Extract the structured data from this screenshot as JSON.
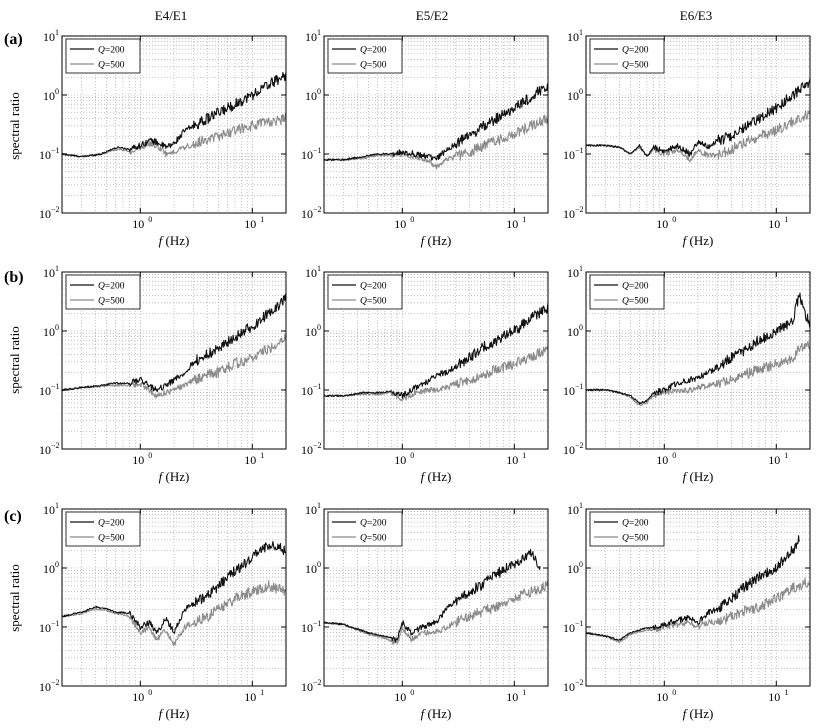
{
  "column_titles": [
    "E4/E1",
    "E5/E2",
    "E6/E3"
  ],
  "row_labels": [
    "(a)",
    "(b)",
    "(c)"
  ],
  "ylabel": "spectral ratio",
  "xlabel_italic": "f",
  "xlabel_unit": "(Hz)",
  "x_ticks": [
    {
      "value": 1,
      "base": "10",
      "exp": "0"
    },
    {
      "value": 10,
      "base": "10",
      "exp": "1"
    }
  ],
  "y_ticks": [
    {
      "value": 0.01,
      "base": "10",
      "exp": "−2"
    },
    {
      "value": 0.1,
      "base": "10",
      "exp": "−1"
    },
    {
      "value": 1,
      "base": "10",
      "exp": "0"
    },
    {
      "value": 10,
      "base": "10",
      "exp": "1"
    }
  ],
  "legend": [
    {
      "q": "Q",
      "rest": "=200",
      "color": "#111111"
    },
    {
      "q": "Q",
      "rest": "=500",
      "color": "#8c8c8c"
    }
  ],
  "chart_data": [
    {
      "type": "line",
      "row": "(a)",
      "column": "E4/E1",
      "xscale": "log",
      "yscale": "log",
      "xlim": [
        0.2,
        20
      ],
      "ylim": [
        0.01,
        10
      ],
      "grid": true,
      "legend_position": "top-left",
      "series": [
        {
          "name": "Q=200",
          "color": "#111111",
          "x": [
            0.2,
            0.3,
            0.45,
            0.55,
            0.65,
            0.8,
            1.0,
            1.2,
            1.4,
            1.7,
            2.0,
            2.5,
            3.0,
            4.0,
            5.0,
            7.0,
            10.0,
            14.0,
            20.0
          ],
          "y": [
            0.1,
            0.09,
            0.1,
            0.12,
            0.13,
            0.12,
            0.14,
            0.17,
            0.16,
            0.13,
            0.15,
            0.25,
            0.3,
            0.4,
            0.5,
            0.7,
            1.0,
            1.5,
            2.2
          ]
        },
        {
          "name": "Q=500",
          "color": "#8c8c8c",
          "x": [
            0.2,
            0.3,
            0.45,
            0.55,
            0.65,
            0.8,
            1.0,
            1.2,
            1.4,
            1.7,
            2.0,
            2.5,
            3.0,
            4.0,
            5.0,
            7.0,
            10.0,
            14.0,
            20.0
          ],
          "y": [
            0.1,
            0.09,
            0.1,
            0.115,
            0.12,
            0.11,
            0.13,
            0.15,
            0.14,
            0.1,
            0.11,
            0.13,
            0.15,
            0.18,
            0.2,
            0.25,
            0.3,
            0.35,
            0.4
          ]
        }
      ]
    },
    {
      "type": "line",
      "row": "(a)",
      "column": "E5/E2",
      "xscale": "log",
      "yscale": "log",
      "xlim": [
        0.2,
        20
      ],
      "ylim": [
        0.01,
        10
      ],
      "grid": true,
      "legend_position": "top-right",
      "series": [
        {
          "name": "Q=200",
          "color": "#111111",
          "x": [
            0.2,
            0.3,
            0.45,
            0.6,
            0.8,
            1.0,
            1.3,
            1.7,
            2.0,
            2.5,
            3.0,
            4.0,
            5.0,
            7.0,
            10.0,
            14.0,
            20.0
          ],
          "y": [
            0.08,
            0.08,
            0.09,
            0.1,
            0.1,
            0.11,
            0.1,
            0.09,
            0.08,
            0.12,
            0.15,
            0.2,
            0.28,
            0.4,
            0.6,
            0.9,
            1.5
          ]
        },
        {
          "name": "Q=500",
          "color": "#8c8c8c",
          "x": [
            0.2,
            0.3,
            0.45,
            0.6,
            0.8,
            1.0,
            1.3,
            1.7,
            2.0,
            2.5,
            3.0,
            4.0,
            5.0,
            7.0,
            10.0,
            14.0,
            20.0
          ],
          "y": [
            0.08,
            0.08,
            0.085,
            0.095,
            0.095,
            0.1,
            0.09,
            0.08,
            0.06,
            0.08,
            0.09,
            0.11,
            0.13,
            0.17,
            0.22,
            0.3,
            0.4
          ]
        }
      ]
    },
    {
      "type": "line",
      "row": "(a)",
      "column": "E6/E3",
      "xscale": "log",
      "yscale": "log",
      "xlim": [
        0.2,
        20
      ],
      "ylim": [
        0.01,
        10
      ],
      "grid": true,
      "legend_position": "top-right",
      "series": [
        {
          "name": "Q=200",
          "color": "#111111",
          "x": [
            0.2,
            0.3,
            0.4,
            0.5,
            0.6,
            0.7,
            0.8,
            1.0,
            1.3,
            1.7,
            2.0,
            2.5,
            3.0,
            4.0,
            5.0,
            7.0,
            10.0,
            14.0,
            20.0
          ],
          "y": [
            0.14,
            0.14,
            0.13,
            0.1,
            0.14,
            0.09,
            0.13,
            0.11,
            0.14,
            0.1,
            0.16,
            0.13,
            0.17,
            0.2,
            0.28,
            0.4,
            0.6,
            1.0,
            1.6
          ]
        },
        {
          "name": "Q=500",
          "color": "#8c8c8c",
          "x": [
            0.2,
            0.3,
            0.4,
            0.5,
            0.6,
            0.7,
            0.8,
            1.0,
            1.3,
            1.7,
            2.0,
            2.5,
            3.0,
            4.0,
            5.0,
            7.0,
            10.0,
            14.0,
            20.0
          ],
          "y": [
            0.14,
            0.14,
            0.13,
            0.1,
            0.13,
            0.09,
            0.12,
            0.1,
            0.12,
            0.08,
            0.12,
            0.09,
            0.1,
            0.12,
            0.15,
            0.2,
            0.25,
            0.35,
            0.5
          ]
        }
      ]
    },
    {
      "type": "line",
      "row": "(b)",
      "column": "E4/E1",
      "xscale": "log",
      "yscale": "log",
      "xlim": [
        0.2,
        20
      ],
      "ylim": [
        0.01,
        10
      ],
      "grid": true,
      "legend_position": "top-left",
      "series": [
        {
          "name": "Q=200",
          "color": "#111111",
          "x": [
            0.2,
            0.3,
            0.45,
            0.6,
            0.8,
            1.0,
            1.2,
            1.4,
            1.7,
            2.0,
            2.5,
            3.0,
            4.0,
            5.0,
            7.0,
            10.0,
            14.0,
            20.0
          ],
          "y": [
            0.1,
            0.11,
            0.12,
            0.13,
            0.13,
            0.15,
            0.12,
            0.1,
            0.12,
            0.15,
            0.2,
            0.3,
            0.4,
            0.5,
            0.8,
            1.2,
            2.0,
            3.5
          ]
        },
        {
          "name": "Q=500",
          "color": "#8c8c8c",
          "x": [
            0.2,
            0.3,
            0.45,
            0.6,
            0.8,
            1.0,
            1.2,
            1.4,
            1.7,
            2.0,
            2.5,
            3.0,
            4.0,
            5.0,
            7.0,
            10.0,
            14.0,
            20.0
          ],
          "y": [
            0.1,
            0.11,
            0.115,
            0.12,
            0.12,
            0.13,
            0.1,
            0.08,
            0.09,
            0.1,
            0.12,
            0.15,
            0.18,
            0.2,
            0.28,
            0.35,
            0.5,
            0.8
          ]
        }
      ]
    },
    {
      "type": "line",
      "row": "(b)",
      "column": "E5/E2",
      "xscale": "log",
      "yscale": "log",
      "xlim": [
        0.2,
        20
      ],
      "ylim": [
        0.01,
        10
      ],
      "grid": true,
      "legend_position": "top-left",
      "series": [
        {
          "name": "Q=200",
          "color": "#111111",
          "x": [
            0.2,
            0.3,
            0.45,
            0.6,
            0.8,
            1.0,
            1.3,
            1.7,
            2.0,
            2.5,
            3.0,
            4.0,
            5.0,
            7.0,
            10.0,
            14.0,
            20.0
          ],
          "y": [
            0.08,
            0.08,
            0.09,
            0.09,
            0.095,
            0.08,
            0.11,
            0.14,
            0.18,
            0.2,
            0.25,
            0.35,
            0.5,
            0.7,
            1.0,
            1.6,
            2.5
          ]
        },
        {
          "name": "Q=500",
          "color": "#8c8c8c",
          "x": [
            0.2,
            0.3,
            0.45,
            0.6,
            0.8,
            1.0,
            1.3,
            1.7,
            2.0,
            2.5,
            3.0,
            4.0,
            5.0,
            7.0,
            10.0,
            14.0,
            20.0
          ],
          "y": [
            0.08,
            0.08,
            0.085,
            0.085,
            0.09,
            0.07,
            0.09,
            0.1,
            0.1,
            0.11,
            0.13,
            0.15,
            0.18,
            0.22,
            0.28,
            0.35,
            0.5
          ]
        }
      ]
    },
    {
      "type": "line",
      "row": "(b)",
      "column": "E6/E3",
      "xscale": "log",
      "yscale": "log",
      "xlim": [
        0.2,
        20
      ],
      "ylim": [
        0.01,
        10
      ],
      "grid": true,
      "legend_position": "top-right",
      "series": [
        {
          "name": "Q=200",
          "color": "#111111",
          "x": [
            0.2,
            0.3,
            0.4,
            0.5,
            0.6,
            0.7,
            0.8,
            1.0,
            1.3,
            1.7,
            2.0,
            2.5,
            3.0,
            4.0,
            5.0,
            7.0,
            10.0,
            14.0,
            16.0,
            20.0
          ],
          "y": [
            0.1,
            0.1,
            0.09,
            0.08,
            0.06,
            0.065,
            0.09,
            0.1,
            0.13,
            0.15,
            0.16,
            0.2,
            0.25,
            0.35,
            0.45,
            0.7,
            1.0,
            1.5,
            4.0,
            1.2
          ]
        },
        {
          "name": "Q=500",
          "color": "#8c8c8c",
          "x": [
            0.2,
            0.3,
            0.4,
            0.5,
            0.6,
            0.7,
            0.8,
            1.0,
            1.3,
            1.7,
            2.0,
            2.5,
            3.0,
            4.0,
            5.0,
            7.0,
            10.0,
            14.0,
            16.0,
            20.0
          ],
          "y": [
            0.1,
            0.1,
            0.09,
            0.075,
            0.055,
            0.06,
            0.08,
            0.09,
            0.1,
            0.1,
            0.11,
            0.12,
            0.13,
            0.15,
            0.18,
            0.22,
            0.28,
            0.35,
            0.5,
            0.55
          ]
        }
      ]
    },
    {
      "type": "line",
      "row": "(c)",
      "column": "E4/E1",
      "xscale": "log",
      "yscale": "log",
      "xlim": [
        0.2,
        20
      ],
      "ylim": [
        0.01,
        10
      ],
      "grid": true,
      "legend_position": "top-left",
      "series": [
        {
          "name": "Q=200",
          "color": "#111111",
          "x": [
            0.2,
            0.3,
            0.4,
            0.5,
            0.6,
            0.8,
            1.0,
            1.2,
            1.4,
            1.7,
            2.0,
            2.5,
            3.0,
            4.0,
            5.0,
            7.0,
            10.0,
            14.0,
            20.0
          ],
          "y": [
            0.15,
            0.18,
            0.22,
            0.2,
            0.18,
            0.17,
            0.1,
            0.12,
            0.08,
            0.14,
            0.08,
            0.2,
            0.25,
            0.35,
            0.5,
            0.9,
            1.5,
            2.5,
            2.0
          ]
        },
        {
          "name": "Q=500",
          "color": "#8c8c8c",
          "x": [
            0.2,
            0.3,
            0.4,
            0.5,
            0.6,
            0.8,
            1.0,
            1.2,
            1.4,
            1.7,
            2.0,
            2.5,
            3.0,
            4.0,
            5.0,
            7.0,
            10.0,
            14.0,
            20.0
          ],
          "y": [
            0.15,
            0.17,
            0.2,
            0.19,
            0.17,
            0.15,
            0.08,
            0.1,
            0.06,
            0.09,
            0.05,
            0.1,
            0.12,
            0.15,
            0.2,
            0.3,
            0.4,
            0.5,
            0.4
          ]
        }
      ]
    },
    {
      "type": "line",
      "row": "(c)",
      "column": "E5/E2",
      "xscale": "log",
      "yscale": "log",
      "xlim": [
        0.2,
        20
      ],
      "ylim": [
        0.01,
        10
      ],
      "grid": true,
      "legend_position": "top-right",
      "series": [
        {
          "name": "Q=200",
          "color": "#111111",
          "x": [
            0.2,
            0.3,
            0.5,
            0.7,
            0.9,
            1.0,
            1.2,
            1.5,
            2.0,
            2.5,
            3.0,
            4.0,
            5.0,
            7.0,
            10.0,
            14.0,
            17.0
          ],
          "y": [
            0.12,
            0.11,
            0.08,
            0.07,
            0.06,
            0.12,
            0.08,
            0.1,
            0.12,
            0.2,
            0.28,
            0.4,
            0.5,
            0.8,
            1.2,
            1.8,
            1.0
          ]
        },
        {
          "name": "Q=500",
          "color": "#8c8c8c",
          "x": [
            0.2,
            0.3,
            0.5,
            0.7,
            0.9,
            1.0,
            1.2,
            1.5,
            2.0,
            2.5,
            3.0,
            4.0,
            5.0,
            7.0,
            10.0,
            14.0,
            20.0
          ],
          "y": [
            0.12,
            0.11,
            0.075,
            0.065,
            0.05,
            0.1,
            0.06,
            0.08,
            0.08,
            0.1,
            0.12,
            0.15,
            0.18,
            0.22,
            0.3,
            0.4,
            0.5
          ]
        }
      ]
    },
    {
      "type": "line",
      "row": "(c)",
      "column": "E6/E3",
      "xscale": "log",
      "yscale": "log",
      "xlim": [
        0.2,
        20
      ],
      "ylim": [
        0.01,
        10
      ],
      "grid": true,
      "legend_position": "top-right",
      "series": [
        {
          "name": "Q=200",
          "color": "#111111",
          "x": [
            0.2,
            0.3,
            0.4,
            0.5,
            0.6,
            0.8,
            1.0,
            1.3,
            1.7,
            2.0,
            2.5,
            3.0,
            4.0,
            5.0,
            7.0,
            10.0,
            14.0,
            16.0
          ],
          "y": [
            0.08,
            0.07,
            0.06,
            0.08,
            0.09,
            0.1,
            0.11,
            0.13,
            0.15,
            0.12,
            0.18,
            0.2,
            0.3,
            0.45,
            0.7,
            1.0,
            2.0,
            3.0
          ]
        },
        {
          "name": "Q=500",
          "color": "#8c8c8c",
          "x": [
            0.2,
            0.3,
            0.4,
            0.5,
            0.6,
            0.8,
            1.0,
            1.3,
            1.7,
            2.0,
            2.5,
            3.0,
            4.0,
            5.0,
            7.0,
            10.0,
            14.0,
            20.0
          ],
          "y": [
            0.08,
            0.07,
            0.055,
            0.075,
            0.085,
            0.09,
            0.1,
            0.11,
            0.12,
            0.1,
            0.12,
            0.12,
            0.15,
            0.18,
            0.22,
            0.3,
            0.45,
            0.6
          ]
        }
      ]
    }
  ]
}
